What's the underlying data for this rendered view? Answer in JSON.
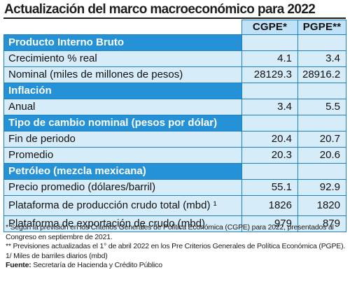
{
  "title": "Actualización del marco macroeconómico para 2022",
  "columns": {
    "col1": "CGPE*",
    "col2": "PGPE**"
  },
  "sections": [
    {
      "heading": "Producto Interno Bruto",
      "rows": [
        {
          "label": "Crecimiento % real",
          "cgpe": "4.1",
          "pgpe": "3.4"
        },
        {
          "label": "Nominal (miles de millones de pesos)",
          "cgpe": "28129.3",
          "pgpe": "28916.2"
        }
      ]
    },
    {
      "heading": "Inflación",
      "rows": [
        {
          "label": "Anual",
          "cgpe": "3.4",
          "pgpe": "5.5"
        }
      ]
    },
    {
      "heading": "Tipo de cambio nominal (pesos por dólar)",
      "rows": [
        {
          "label": "Fin de periodo",
          "cgpe": "20.4",
          "pgpe": "20.7"
        },
        {
          "label": "Promedio",
          "cgpe": "20.3",
          "pgpe": "20.6"
        }
      ]
    },
    {
      "heading": "Petróleo (mezcla mexicana)",
      "rows": [
        {
          "label": "Precio promedio (dólares/barril)",
          "cgpe": "55.1",
          "pgpe": "92.9"
        },
        {
          "label": "Plataforma de producción crudo total (mbd) ¹",
          "cgpe": "1826",
          "pgpe": "1820"
        },
        {
          "label": "Plataforma de exportación de crudo (mbd)",
          "cgpe": "979",
          "pgpe": "879"
        }
      ]
    }
  ],
  "notes": {
    "note1": "* Según la previsión en los Criterios Generales de Política Económica (CGPE) para 2022, presentados al Congreso en septiembre de 2021.",
    "note2": "** Previsiones actualizadas el 1° de abril 2022 en los Pre Criterios Generales de Política Económica (PGPE).",
    "note3": "1/ Miles de barriles diarios (mbd)",
    "source_label": "Fuente:",
    "source_text": " Secretaría de Hacienda y Crédito Público"
  },
  "colors": {
    "section_blue": "#2591d7",
    "row_fill": "#d7ecf9",
    "header_fill": "#bfe2f6",
    "border": "#1e7fc2"
  }
}
